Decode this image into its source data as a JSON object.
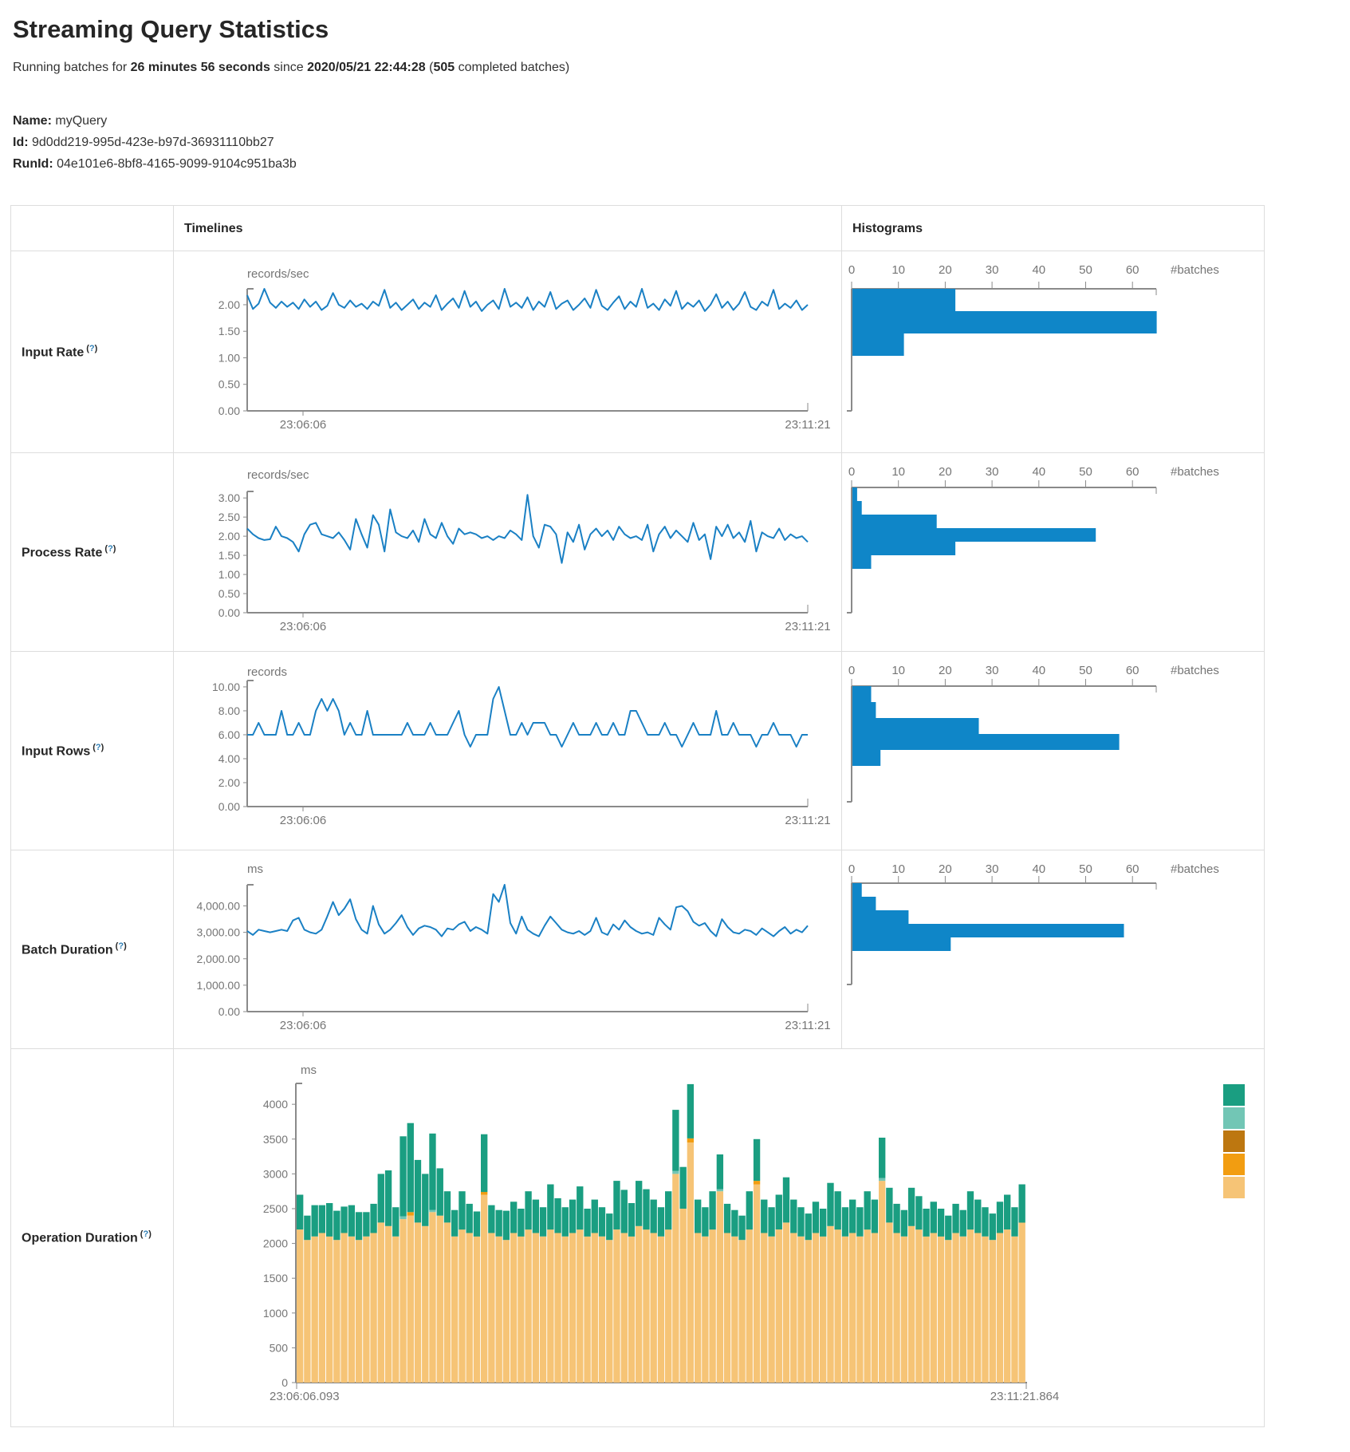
{
  "page": {
    "title": "Streaming Query Statistics",
    "subtitle": {
      "prefix": "Running batches for ",
      "duration": "26 minutes 56 seconds",
      "mid": " since ",
      "start_time": "2020/05/21 22:44:28",
      "open_paren": " (",
      "batch_count": "505",
      "suffix": " completed batches)"
    },
    "meta": [
      {
        "label": "Name:",
        "value": "myQuery"
      },
      {
        "label": "Id:",
        "value": "9d0dd219-995d-423e-b97d-36931110bb27"
      },
      {
        "label": "RunId:",
        "value": "04e101e6-8bf8-4165-9099-9104c951ba3b"
      }
    ]
  },
  "table": {
    "headers": {
      "timelines": "Timelines",
      "histograms": "Histograms"
    },
    "help": {
      "open": "(",
      "q": "?",
      "close": ")"
    },
    "rows": [
      {
        "label": "Input Rate"
      },
      {
        "label": "Process Rate"
      },
      {
        "label": "Input Rows"
      },
      {
        "label": "Batch Duration"
      },
      {
        "label": "Operation Duration"
      }
    ]
  },
  "colors": {
    "accent_blue": "#0f86c8",
    "line_blue": "#1a80c4",
    "axis_gray": "#8a8a8a",
    "text_gray": "#757575",
    "border_gray": "#dddddd",
    "help_blue": "#2f7fb6",
    "stack_green": "#1a9e81",
    "stack_light_teal": "#72c6b5",
    "stack_dark_yellow": "#bd7710",
    "stack_orange": "#f29d11",
    "stack_tan": "#f6c476"
  },
  "chart_data": {
    "input_rate": {
      "timeline": {
        "type": "line",
        "unit": "records/sec",
        "x_start_label": "23:06:06",
        "x_end_label": "23:11:21",
        "y_ticks": [
          "0.00",
          "0.50",
          "1.00",
          "1.50",
          "2.00"
        ],
        "y_tick_values": [
          0,
          0.5,
          1,
          1.5,
          2
        ],
        "y_max": 2.3,
        "values": [
          2.18,
          1.92,
          2.02,
          2.3,
          2.04,
          1.94,
          2.06,
          1.96,
          2.04,
          1.92,
          2.1,
          1.96,
          2.06,
          1.9,
          1.98,
          2.22,
          2.0,
          1.94,
          2.08,
          1.96,
          2.02,
          1.92,
          2.06,
          1.98,
          2.28,
          1.94,
          2.04,
          1.9,
          2.0,
          2.1,
          1.92,
          2.04,
          1.96,
          2.18,
          1.9,
          2.02,
          2.12,
          1.94,
          2.26,
          1.96,
          2.06,
          1.88,
          2.0,
          2.08,
          1.92,
          2.3,
          1.96,
          2.04,
          1.94,
          2.14,
          1.9,
          2.06,
          1.96,
          2.24,
          1.92,
          2.02,
          2.08,
          1.9,
          2.0,
          2.12,
          1.94,
          2.28,
          1.98,
          1.9,
          2.04,
          2.16,
          1.92,
          2.06,
          1.96,
          2.3,
          1.94,
          2.02,
          1.9,
          2.1,
          1.98,
          2.26,
          1.92,
          2.04,
          1.96,
          2.08,
          1.88,
          2.0,
          2.2,
          1.94,
          2.06,
          1.9,
          2.02,
          2.24,
          1.96,
          1.9,
          2.06,
          1.98,
          2.28,
          1.92,
          2.02,
          1.94,
          2.08,
          1.9,
          2.0
        ]
      },
      "histogram": {
        "type": "bar",
        "x_ticks": [
          0,
          10,
          20,
          30,
          40,
          50,
          60
        ],
        "x_axis_label": "#batches",
        "bin_counts": [
          22,
          65,
          11
        ]
      }
    },
    "process_rate": {
      "timeline": {
        "type": "line",
        "unit": "records/sec",
        "x_start_label": "23:06:06",
        "x_end_label": "23:11:21",
        "y_ticks": [
          "0.00",
          "0.50",
          "1.00",
          "1.50",
          "2.00",
          "2.50",
          "3.00"
        ],
        "y_tick_values": [
          0,
          0.5,
          1,
          1.5,
          2,
          2.5,
          3
        ],
        "y_max": 3.17,
        "values": [
          2.2,
          2.05,
          1.95,
          1.9,
          1.92,
          2.25,
          2.0,
          1.95,
          1.85,
          1.6,
          2.05,
          2.3,
          2.35,
          2.05,
          2.0,
          1.95,
          2.1,
          1.9,
          1.65,
          2.45,
          2.05,
          1.7,
          2.55,
          2.3,
          1.6,
          2.7,
          2.1,
          2.0,
          1.95,
          2.15,
          1.85,
          2.45,
          2.05,
          1.95,
          2.35,
          2.0,
          1.8,
          2.2,
          2.05,
          2.1,
          2.05,
          1.95,
          2.0,
          1.9,
          2.0,
          1.95,
          2.15,
          2.05,
          1.9,
          3.08,
          2.0,
          1.7,
          2.3,
          2.25,
          2.05,
          1.3,
          2.1,
          1.85,
          2.3,
          1.65,
          2.05,
          2.2,
          2.0,
          2.15,
          1.9,
          2.25,
          2.05,
          1.95,
          2.0,
          1.9,
          2.3,
          1.6,
          2.05,
          2.25,
          1.95,
          2.15,
          2.0,
          1.85,
          2.35,
          1.9,
          2.05,
          1.4,
          2.25,
          2.0,
          2.3,
          1.95,
          2.1,
          1.85,
          2.4,
          1.6,
          2.1,
          2.0,
          1.95,
          2.2,
          1.9,
          2.05,
          1.95,
          2.0,
          1.85
        ]
      },
      "histogram": {
        "type": "bar",
        "x_ticks": [
          0,
          10,
          20,
          30,
          40,
          50,
          60
        ],
        "x_axis_label": "#batches",
        "bin_counts": [
          1,
          2,
          18,
          52,
          22,
          4
        ]
      }
    },
    "input_rows": {
      "timeline": {
        "type": "line",
        "unit": "records",
        "x_start_label": "23:06:06",
        "x_end_label": "23:11:21",
        "y_ticks": [
          "0.00",
          "2.00",
          "4.00",
          "6.00",
          "8.00",
          "10.00"
        ],
        "y_tick_values": [
          0,
          2,
          4,
          6,
          8,
          10
        ],
        "y_max": 10.53,
        "values": [
          6,
          6,
          7,
          6,
          6,
          6,
          8,
          6,
          6,
          7,
          6,
          6,
          8,
          9,
          8,
          9,
          8,
          6,
          7,
          6,
          6,
          8,
          6,
          6,
          6,
          6,
          6,
          6,
          7,
          6,
          6,
          6,
          7,
          6,
          6,
          6,
          7,
          8,
          6,
          5,
          6,
          6,
          6,
          9,
          10,
          8,
          6,
          6,
          7,
          6,
          7,
          7,
          7,
          6,
          6,
          5,
          6,
          7,
          6,
          6,
          6,
          7,
          6,
          6,
          7,
          6,
          6,
          8,
          8,
          7,
          6,
          6,
          6,
          7,
          6,
          6,
          5,
          6,
          7,
          6,
          6,
          6,
          8,
          6,
          6,
          7,
          6,
          6,
          6,
          5,
          6,
          6,
          7,
          6,
          6,
          6,
          5,
          6,
          6
        ]
      },
      "histogram": {
        "type": "bar",
        "x_ticks": [
          0,
          10,
          20,
          30,
          40,
          50,
          60
        ],
        "x_axis_label": "#batches",
        "bin_counts": [
          4,
          5,
          27,
          57,
          6
        ]
      }
    },
    "batch_duration": {
      "timeline": {
        "type": "line",
        "unit": "ms",
        "x_start_label": "23:06:06",
        "x_end_label": "23:11:21",
        "y_ticks": [
          "0.00",
          "1,000.00",
          "2,000.00",
          "3,000.00",
          "4,000.00"
        ],
        "y_tick_values": [
          0,
          1000,
          2000,
          3000,
          4000
        ],
        "y_max": 4800,
        "values": [
          3050,
          2900,
          3100,
          3050,
          3000,
          3050,
          3100,
          3050,
          3450,
          3550,
          3100,
          3000,
          2950,
          3100,
          3600,
          4150,
          3650,
          3900,
          4250,
          3500,
          3100,
          2950,
          4000,
          3300,
          2950,
          3100,
          3350,
          3650,
          3200,
          2900,
          3150,
          3250,
          3200,
          3100,
          2850,
          3150,
          3100,
          3300,
          3400,
          3050,
          3200,
          3100,
          2950,
          4450,
          4150,
          4800,
          3350,
          2950,
          3600,
          3100,
          2950,
          2850,
          3250,
          3600,
          3350,
          3100,
          3000,
          2950,
          3050,
          2900,
          3050,
          3550,
          3000,
          2900,
          3300,
          3100,
          3450,
          3200,
          3050,
          2950,
          3000,
          2900,
          3550,
          3300,
          3100,
          3950,
          4000,
          3800,
          3400,
          3250,
          3350,
          3050,
          2850,
          3500,
          3200,
          3000,
          2950,
          3100,
          3050,
          2900,
          3150,
          3000,
          2850,
          3050,
          3200,
          2950,
          3100,
          3000,
          3250
        ]
      },
      "histogram": {
        "type": "bar",
        "x_ticks": [
          0,
          10,
          20,
          30,
          40,
          50,
          60
        ],
        "x_axis_label": "#batches",
        "bin_counts": [
          2,
          5,
          12,
          58,
          21
        ]
      }
    },
    "operation_duration": {
      "type": "stacked-bar",
      "unit": "ms",
      "x_start_label": "23:06:06.093",
      "x_end_label": "23:11:21.864",
      "y_ticks": [
        "0",
        "500",
        "1000",
        "1500",
        "2000",
        "2500",
        "3000",
        "3500",
        "4000"
      ],
      "y_tick_values": [
        0,
        500,
        1000,
        1500,
        2000,
        2500,
        3000,
        3500,
        4000
      ],
      "scale_max": 4300,
      "base_tan": [
        2200,
        2050,
        2100,
        2150,
        2100,
        2050,
        2150,
        2100,
        2050,
        2100,
        2150,
        2300,
        2250,
        2100,
        2350,
        2400,
        2300,
        2250,
        2450,
        2400,
        2300,
        2100,
        2200,
        2150,
        2100,
        2700,
        2150,
        2100,
        2050,
        2150,
        2100,
        2200,
        2150,
        2100,
        2200,
        2150,
        2100,
        2150,
        2200,
        2100,
        2150,
        2100,
        2050,
        2200,
        2150,
        2100,
        2250,
        2200,
        2150,
        2100,
        2200,
        3000,
        2500,
        3450,
        2150,
        2100,
        2200,
        2750,
        2150,
        2100,
        2050,
        2200,
        2850,
        2150,
        2100,
        2200,
        2300,
        2150,
        2100,
        2050,
        2150,
        2100,
        2250,
        2200,
        2100,
        2150,
        2100,
        2200,
        2150,
        2900,
        2300,
        2150,
        2100,
        2250,
        2200,
        2100,
        2150,
        2100,
        2050,
        2150,
        2100,
        2200,
        2150,
        2100,
        2050,
        2150,
        2200,
        2100,
        2300
      ],
      "top_green": [
        500,
        350,
        450,
        400,
        480,
        420,
        380,
        450,
        400,
        350,
        420,
        700,
        800,
        420,
        1150,
        1280,
        900,
        750,
        1100,
        680,
        450,
        380,
        550,
        420,
        360,
        830,
        400,
        380,
        420,
        450,
        400,
        550,
        480,
        420,
        650,
        500,
        420,
        480,
        620,
        400,
        480,
        420,
        380,
        700,
        620,
        480,
        650,
        580,
        480,
        420,
        550,
        880,
        600,
        780,
        480,
        420,
        550,
        500,
        420,
        380,
        350,
        550,
        600,
        480,
        420,
        500,
        650,
        480,
        420,
        380,
        450,
        400,
        620,
        550,
        420,
        480,
        420,
        550,
        480,
        580,
        500,
        420,
        380,
        550,
        480,
        400,
        450,
        400,
        350,
        420,
        380,
        550,
        480,
        420,
        380,
        450,
        500,
        420,
        550
      ],
      "orange": {
        "15": 50,
        "25": 40,
        "53": 60,
        "62": 50
      },
      "light_teal": {
        "14": 40,
        "18": 30,
        "51": 40,
        "57": 30,
        "79": 40
      },
      "legend_keys": [
        "stack_green",
        "stack_light_teal",
        "stack_dark_yellow",
        "stack_orange",
        "stack_tan"
      ]
    }
  }
}
